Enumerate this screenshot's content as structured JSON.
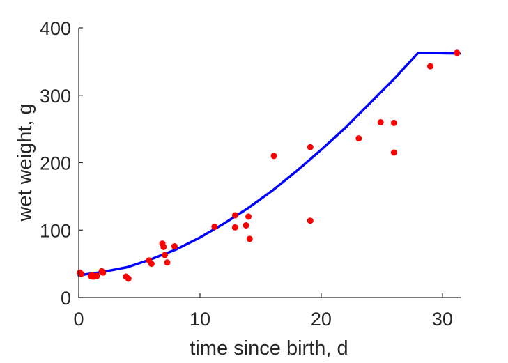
{
  "chart_data": {
    "type": "scatter",
    "title": "",
    "xlabel": "time since birth, d",
    "ylabel": "wet weight, g",
    "xlim": [
      0,
      31.5
    ],
    "ylim": [
      0,
      400
    ],
    "xticks": [
      0,
      10,
      20,
      30
    ],
    "yticks": [
      0,
      100,
      200,
      300,
      400
    ],
    "xtick_labels": [
      "0",
      "10",
      "20",
      "30"
    ],
    "ytick_labels": [
      "0",
      "100",
      "200",
      "300",
      "400"
    ],
    "grid": false,
    "legend": "none",
    "series": [
      {
        "kind": "scatter",
        "color": "#ff0000",
        "points": [
          [
            0.1,
            37
          ],
          [
            0.2,
            35
          ],
          [
            1.0,
            32
          ],
          [
            1.1,
            33
          ],
          [
            1.2,
            31
          ],
          [
            1.5,
            32
          ],
          [
            1.9,
            39
          ],
          [
            2.0,
            37
          ],
          [
            3.9,
            31
          ],
          [
            4.1,
            28
          ],
          [
            5.8,
            55
          ],
          [
            6.0,
            50
          ],
          [
            6.9,
            80
          ],
          [
            7.0,
            75
          ],
          [
            7.1,
            63
          ],
          [
            7.3,
            52
          ],
          [
            7.9,
            76
          ],
          [
            11.2,
            105
          ],
          [
            12.9,
            122
          ],
          [
            12.9,
            104
          ],
          [
            13.8,
            107
          ],
          [
            14.0,
            120
          ],
          [
            14.1,
            87
          ],
          [
            16.1,
            210
          ],
          [
            19.1,
            223
          ],
          [
            19.1,
            114
          ],
          [
            23.1,
            236
          ],
          [
            24.9,
            260
          ],
          [
            26.0,
            259
          ],
          [
            26.0,
            215
          ],
          [
            29.0,
            343
          ],
          [
            31.2,
            363
          ]
        ]
      },
      {
        "kind": "line",
        "color": "#0000ff",
        "points": [
          [
            0,
            33
          ],
          [
            2,
            38
          ],
          [
            4,
            45
          ],
          [
            6,
            57
          ],
          [
            8,
            71
          ],
          [
            10,
            89
          ],
          [
            12,
            110
          ],
          [
            14,
            133
          ],
          [
            16,
            159
          ],
          [
            18,
            188
          ],
          [
            20,
            219
          ],
          [
            22,
            252
          ],
          [
            24,
            288
          ],
          [
            26,
            324
          ],
          [
            28,
            363
          ],
          [
            31.4,
            362
          ]
        ]
      }
    ]
  }
}
